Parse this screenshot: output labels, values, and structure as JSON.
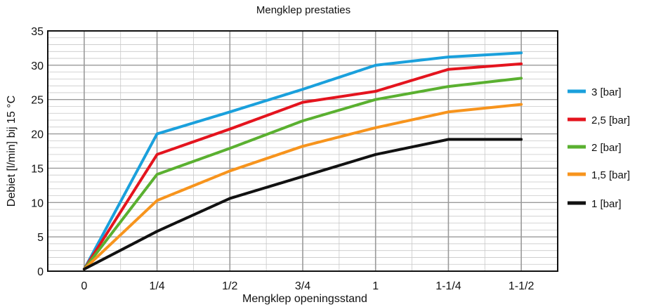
{
  "chart_data": {
    "type": "line",
    "title": "Mengklep prestaties",
    "xlabel": "Mengklep openingsstand",
    "ylabel": "Debiet [l/min] bij 15 °C",
    "categories": [
      "0",
      "1/4",
      "1/2",
      "3/4",
      "1",
      "1-1/4",
      "1-1/2"
    ],
    "x_positions": [
      0,
      0.25,
      0.5,
      0.75,
      1.0,
      1.25,
      1.5
    ],
    "xlim": [
      -0.125,
      1.625
    ],
    "ylim": [
      0,
      35
    ],
    "yticks": [
      0,
      5,
      10,
      15,
      20,
      25,
      30,
      35
    ],
    "grid": true,
    "legend_position": "right",
    "series": [
      {
        "name": "3 [bar]",
        "color": "#1aa0dc",
        "x": [
          0,
          0.25,
          0.5,
          0.75,
          1.0,
          1.25,
          1.5
        ],
        "values": [
          0.3,
          20.0,
          23.2,
          26.5,
          30.0,
          31.2,
          31.8
        ]
      },
      {
        "name": "2,5 [bar]",
        "color": "#e4141e",
        "x": [
          0,
          0.25,
          0.5,
          0.75,
          1.0,
          1.25,
          1.5
        ],
        "values": [
          0.3,
          17.0,
          20.7,
          24.6,
          26.2,
          29.4,
          30.2
        ]
      },
      {
        "name": "2 [bar]",
        "color": "#5ab030",
        "x": [
          0,
          0.25,
          0.5,
          0.75,
          1.0,
          1.25,
          1.5
        ],
        "values": [
          0.3,
          14.1,
          17.9,
          21.9,
          25.0,
          26.9,
          28.1
        ]
      },
      {
        "name": "1,5 [bar]",
        "color": "#f7941d",
        "x": [
          0,
          0.25,
          0.5,
          0.75,
          1.0,
          1.25,
          1.5
        ],
        "values": [
          0.3,
          10.3,
          14.6,
          18.2,
          20.9,
          23.2,
          24.3
        ]
      },
      {
        "name": "1 [bar]",
        "color": "#111111",
        "x": [
          0,
          0.25,
          0.5,
          0.75,
          1.0,
          1.25,
          1.5
        ],
        "values": [
          0.3,
          5.8,
          10.6,
          13.8,
          17.0,
          19.2,
          19.2
        ]
      }
    ]
  }
}
